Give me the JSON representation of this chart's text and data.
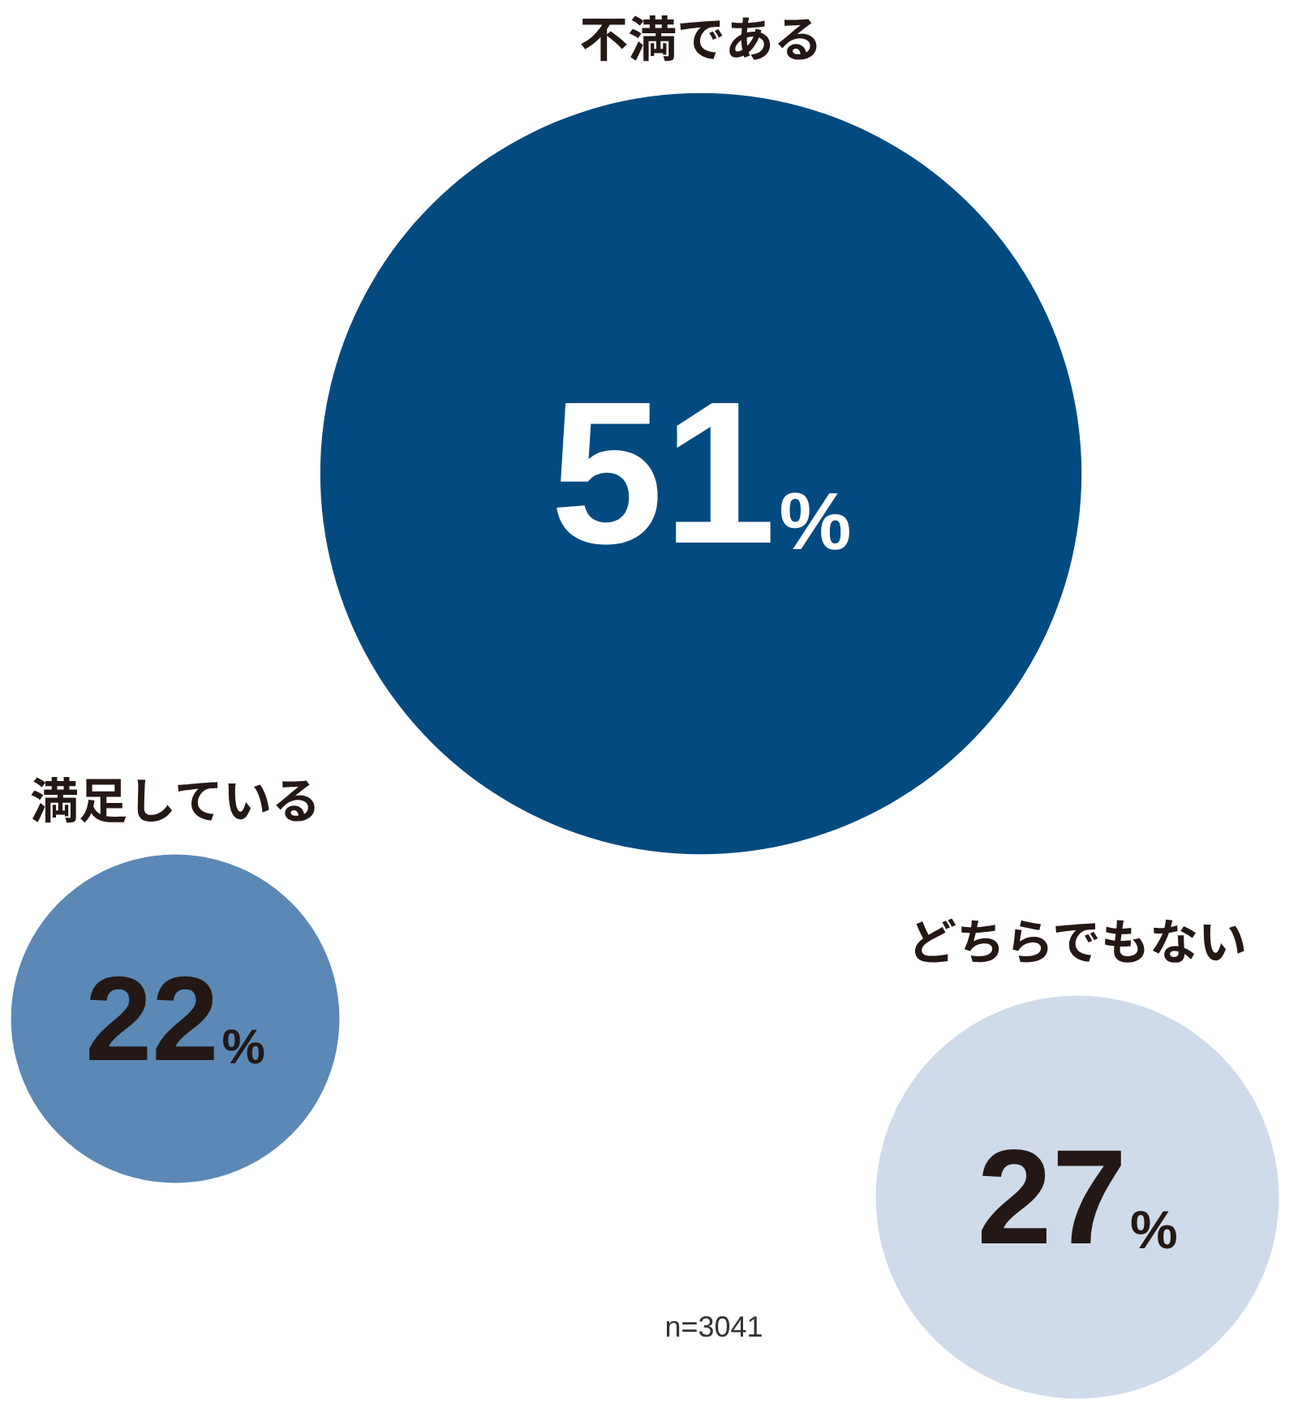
{
  "chart_data": {
    "type": "other",
    "categories": [
      "不満である",
      "満足している",
      "どちらでもない"
    ],
    "values": [
      51,
      22,
      27
    ],
    "value_labels": [
      "51%",
      "22%",
      "27%"
    ],
    "colors": [
      "#034a80",
      "#5b88b5",
      "#cfdbea"
    ],
    "annotations": [
      "n=3041"
    ]
  }
}
